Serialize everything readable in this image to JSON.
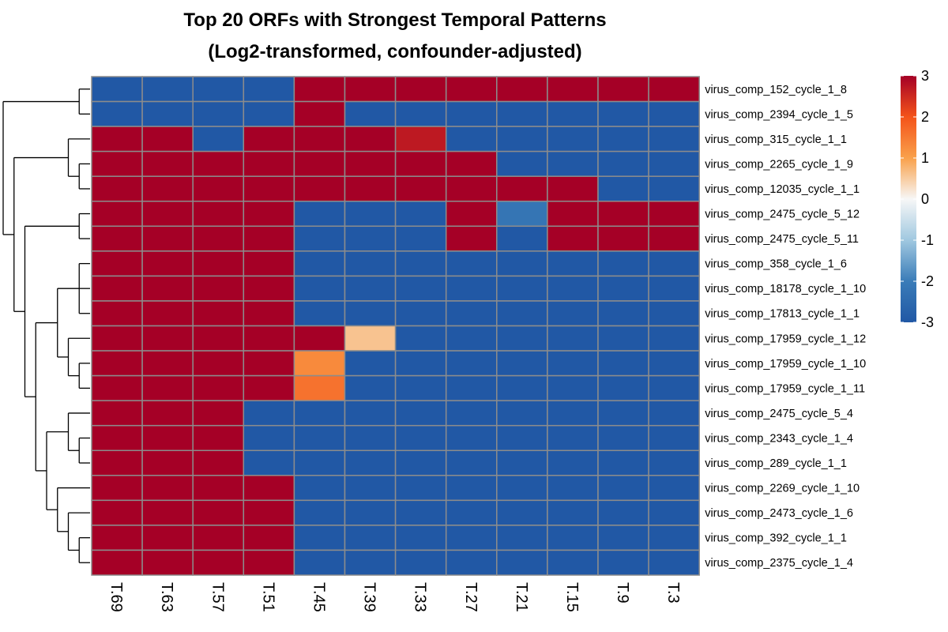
{
  "chart_data": {
    "type": "heatmap",
    "title": "Top 20 ORFs with Strongest Temporal Patterns",
    "subtitle": "(Log2-transformed, confounder-adjusted)",
    "columns": [
      "T.69",
      "T.63",
      "T.57",
      "T.51",
      "T.45",
      "T.39",
      "T.33",
      "T.27",
      "T.21",
      "T.15",
      "T.9",
      "T.3"
    ],
    "rows": [
      "virus_comp_152_cycle_1_8",
      "virus_comp_2394_cycle_1_5",
      "virus_comp_315_cycle_1_1",
      "virus_comp_2265_cycle_1_9",
      "virus_comp_12035_cycle_1_1",
      "virus_comp_2475_cycle_5_12",
      "virus_comp_2475_cycle_5_11",
      "virus_comp_358_cycle_1_6",
      "virus_comp_18178_cycle_1_10",
      "virus_comp_17813_cycle_1_1",
      "virus_comp_17959_cycle_1_12",
      "virus_comp_17959_cycle_1_10",
      "virus_comp_17959_cycle_1_11",
      "virus_comp_2475_cycle_5_4",
      "virus_comp_2343_cycle_1_4",
      "virus_comp_289_cycle_1_1",
      "virus_comp_2269_cycle_1_10",
      "virus_comp_2473_cycle_1_6",
      "virus_comp_392_cycle_1_1",
      "virus_comp_2375_cycle_1_4"
    ],
    "values": [
      [
        -3,
        -3,
        -3,
        -3,
        3,
        3,
        3,
        3,
        3,
        3,
        3,
        3
      ],
      [
        -3,
        -3,
        -3,
        -3,
        3,
        -3,
        -3,
        -3,
        -3,
        -3,
        -3,
        -3
      ],
      [
        3,
        3,
        -3,
        3,
        3,
        3,
        2.7,
        -3,
        -3,
        -3,
        -3,
        -3
      ],
      [
        3,
        3,
        3,
        3,
        3,
        3,
        3,
        3,
        -3,
        -3,
        -3,
        -3
      ],
      [
        3,
        3,
        3,
        3,
        3,
        3,
        3,
        3,
        3,
        3,
        -3,
        -3
      ],
      [
        3,
        3,
        3,
        3,
        -3,
        -3,
        -3,
        3,
        -2.2,
        3,
        3,
        3
      ],
      [
        3,
        3,
        3,
        3,
        -3,
        -3,
        -3,
        3,
        -3,
        3,
        3,
        3
      ],
      [
        3,
        3,
        3,
        3,
        -3,
        -3,
        -3,
        -3,
        -3,
        -3,
        -3,
        -3
      ],
      [
        3,
        3,
        3,
        3,
        -3,
        -3,
        -3,
        -3,
        -3,
        -3,
        -3,
        -3
      ],
      [
        3,
        3,
        3,
        3,
        -3,
        -3,
        -3,
        -3,
        -3,
        -3,
        -3,
        -3
      ],
      [
        3,
        3,
        3,
        3,
        3,
        0.6,
        -3,
        -3,
        -3,
        -3,
        -3,
        -3
      ],
      [
        3,
        3,
        3,
        3,
        1.3,
        -3,
        -3,
        -3,
        -3,
        -3,
        -3,
        -3
      ],
      [
        3,
        3,
        3,
        3,
        1.6,
        -3,
        -3,
        -3,
        -3,
        -3,
        -3,
        -3
      ],
      [
        3,
        3,
        3,
        -3,
        -3,
        -3,
        -3,
        -3,
        -3,
        -3,
        -3,
        -3
      ],
      [
        3,
        3,
        3,
        -3,
        -3,
        -3,
        -3,
        -3,
        -3,
        -3,
        -3,
        -3
      ],
      [
        3,
        3,
        3,
        -3,
        -3,
        -3,
        -3,
        -3,
        -3,
        -3,
        -3,
        -3
      ],
      [
        3,
        3,
        3,
        3,
        -3,
        -3,
        -3,
        -3,
        -3,
        -3,
        -3,
        -3
      ],
      [
        3,
        3,
        3,
        3,
        -3,
        -3,
        -3,
        -3,
        -3,
        -3,
        -3,
        -3
      ],
      [
        3,
        3,
        3,
        3,
        -3,
        -3,
        -3,
        -3,
        -3,
        -3,
        -3,
        -3
      ],
      [
        3,
        3,
        3,
        3,
        -3,
        -3,
        -3,
        -3,
        -3,
        -3,
        -3,
        -3
      ]
    ],
    "color_scale": {
      "range": [
        -3,
        3
      ],
      "ticks": [
        3,
        2,
        1,
        0,
        -1,
        -2,
        -3
      ],
      "stops": [
        {
          "value": -3,
          "color": "#2158a5"
        },
        {
          "value": -2,
          "color": "#3a7cb8"
        },
        {
          "value": -1,
          "color": "#a0c8e0"
        },
        {
          "value": 0,
          "color": "#f7f7f7"
        },
        {
          "value": 1,
          "color": "#f9a14b"
        },
        {
          "value": 2,
          "color": "#f4531a"
        },
        {
          "value": 3,
          "color": "#a50026"
        }
      ]
    },
    "legend_position": "right",
    "row_dendrogram": true,
    "grid_color": "#8c8c8c"
  }
}
